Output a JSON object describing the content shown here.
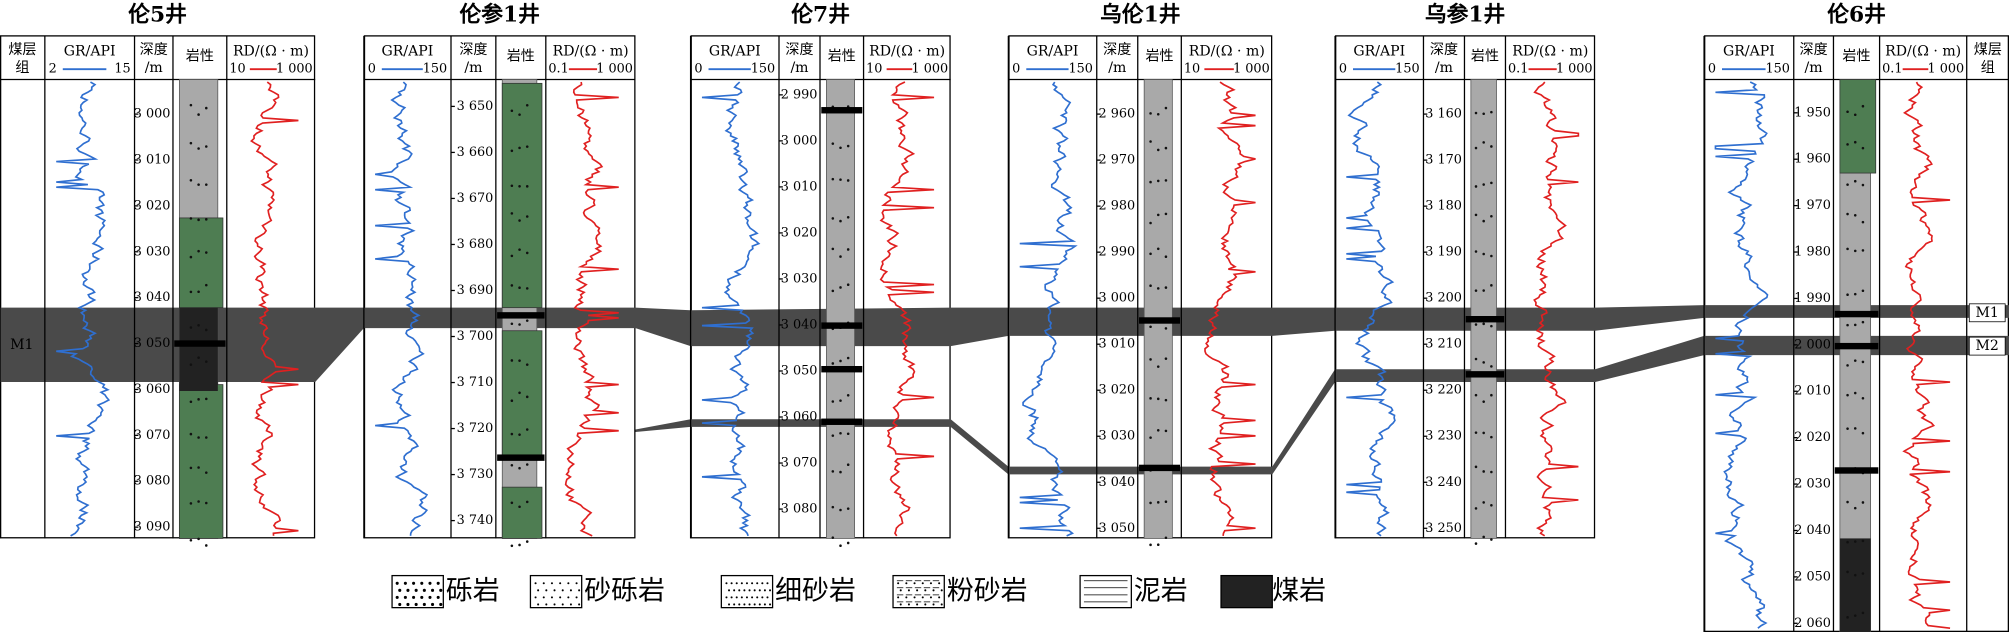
{
  "wells": [
    {
      "name": "伦5井",
      "coal_header": [
        "煤层",
        "组"
      ],
      "gr_header": "GR/API",
      "gr_scale": [
        "2",
        "15"
      ],
      "depth_header": [
        "深度",
        "/m"
      ],
      "litho_header": "岩性",
      "rd_header": "RD/(Ω · m)",
      "rd_scale": [
        "10",
        "1 000"
      ],
      "depth_ticks": [
        "3 000",
        "3 010",
        "3 020",
        "3 030",
        "3 040",
        "3 050",
        "3 060",
        "3 070",
        "3 080",
        "3 090"
      ],
      "coal_labels": [
        "M1"
      ]
    },
    {
      "name": "伦参1井",
      "gr_header": "GR/API",
      "gr_scale": [
        "0",
        "150"
      ],
      "depth_header": [
        "深度",
        "/m"
      ],
      "litho_header": "岩性",
      "rd_header": "RD/(Ω · m)",
      "rd_scale": [
        "0.1",
        "1 000"
      ],
      "depth_ticks": [
        "3 650",
        "3 660",
        "3 670",
        "3 680",
        "3 690",
        "3 700",
        "3 710",
        "3 720",
        "3 730",
        "3 740"
      ]
    },
    {
      "name": "伦7井",
      "gr_header": "GR/API",
      "gr_scale": [
        "0",
        "150"
      ],
      "depth_header": [
        "深度",
        "/m"
      ],
      "litho_header": "岩性",
      "rd_header": "RD/(Ω · m)",
      "rd_scale": [
        "10",
        "1 000"
      ],
      "depth_ticks": [
        "2 990",
        "3 000",
        "3 010",
        "3 020",
        "3 030",
        "3 040",
        "3 050",
        "3 060",
        "3 070",
        "3 080"
      ]
    },
    {
      "name": "乌伦1井",
      "gr_header": "GR/API",
      "gr_scale": [
        "0",
        "150"
      ],
      "depth_header": [
        "深度",
        "/m"
      ],
      "litho_header": "岩性",
      "rd_header": "RD/(Ω · m)",
      "rd_scale": [
        "10",
        "1 000"
      ],
      "depth_ticks": [
        "2 960",
        "2 970",
        "2 980",
        "2 990",
        "3 000",
        "3 010",
        "3 020",
        "3 030",
        "3 040",
        "3 050"
      ]
    },
    {
      "name": "乌参1井",
      "gr_header": "GR/API",
      "gr_scale": [
        "0",
        "150"
      ],
      "depth_header": [
        "深度",
        "/m"
      ],
      "litho_header": "岩性",
      "rd_header": "RD/(Ω · m)",
      "rd_scale": [
        "0.1",
        "1 000"
      ],
      "depth_ticks": [
        "3 160",
        "3 170",
        "3 180",
        "3 190",
        "3 200",
        "3 210",
        "3 220",
        "3 230",
        "3 240",
        "3 250"
      ]
    },
    {
      "name": "伦6井",
      "coal_header": [
        "煤层",
        "组"
      ],
      "gr_header": "GR/API",
      "gr_scale": [
        "0",
        "150"
      ],
      "depth_header": [
        "深度",
        "/m"
      ],
      "litho_header": "岩性",
      "rd_header": "RD/(Ω · m)",
      "rd_scale": [
        "0.1",
        "1 000"
      ],
      "depth_ticks": [
        "1 950",
        "1 960",
        "1 970",
        "1 980",
        "1 990",
        "2 000",
        "2 010",
        "2 020",
        "2 030",
        "2 040",
        "2 050",
        "2 060"
      ],
      "coal_labels": [
        "M1",
        "M2"
      ]
    }
  ],
  "legend": [
    "砾岩",
    "砂砾岩",
    "细砂岩",
    "粉砂岩",
    "泥岩",
    "煤岩"
  ]
}
